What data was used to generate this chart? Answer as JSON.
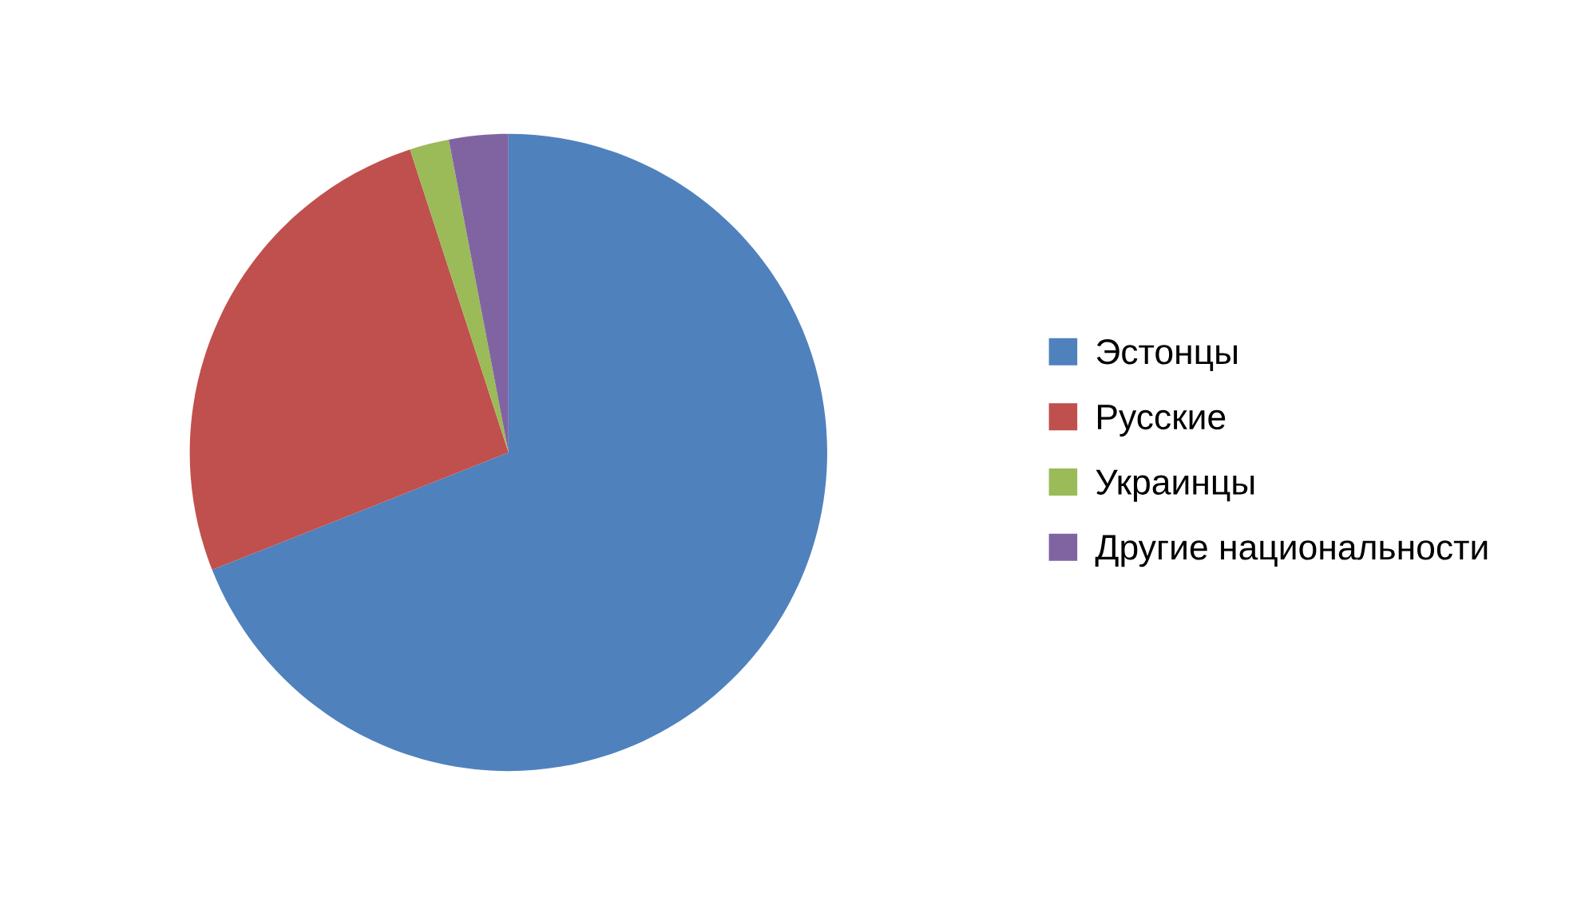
{
  "chart_data": {
    "type": "pie",
    "categories": [
      "Эстонцы",
      "Русские",
      "Украинцы",
      "Другие национальности"
    ],
    "values": [
      69,
      26,
      2,
      3
    ],
    "colors": [
      "#4f81bd",
      "#c0504d",
      "#9bbb59",
      "#8064a2"
    ],
    "legend": "right"
  }
}
